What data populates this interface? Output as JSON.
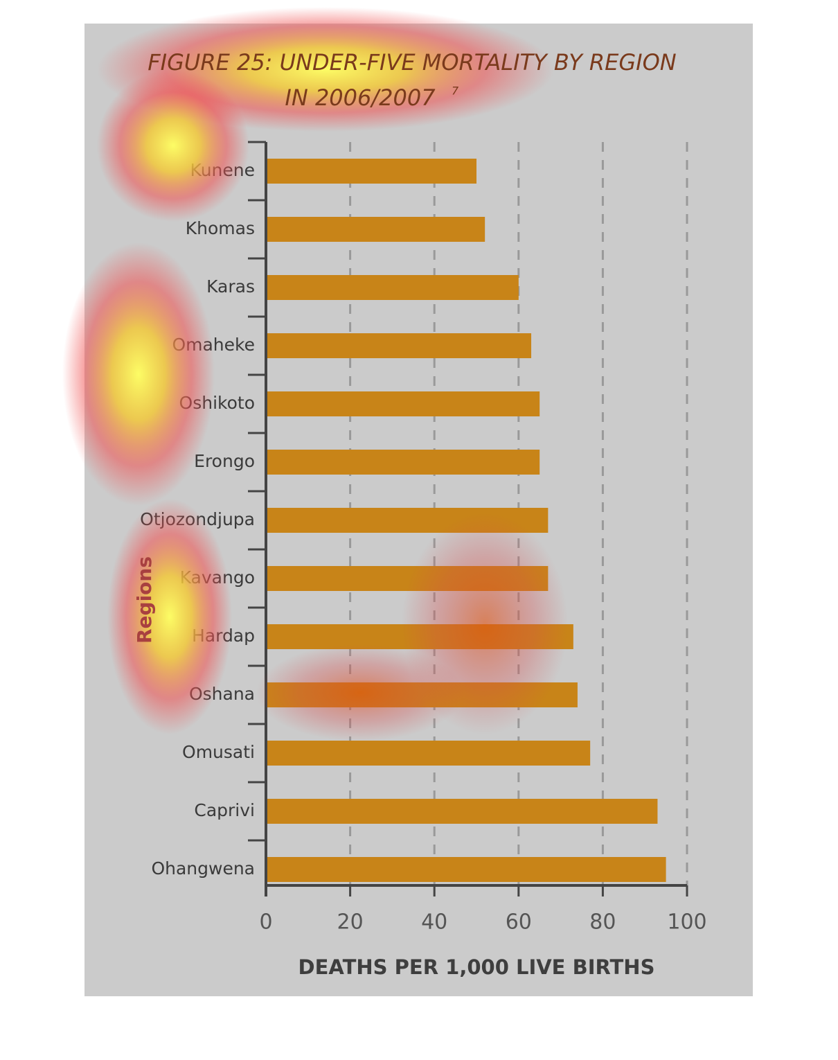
{
  "chart_data": {
    "type": "hbar",
    "title_lines": [
      "FIGURE 25: UNDER-FIVE MORTALITY BY REGION",
      "IN 2006/2007"
    ],
    "title_footnote": "7",
    "x_label": "DEATHS PER 1,000 LIVE BIRTHS",
    "y_label": "Regions",
    "categories": [
      "Kunene",
      "Khomas",
      "Karas",
      "Omaheke",
      "Oshikoto",
      "Erongo",
      "Otjozondjupa",
      "Kavango",
      "Hardap",
      "Oshana",
      "Omusati",
      "Caprivi",
      "Ohangwena"
    ],
    "values": [
      50,
      52,
      60,
      63,
      65,
      65,
      67,
      67,
      73,
      74,
      77,
      93,
      95
    ],
    "color": "#c88418",
    "xlim": [
      0,
      100
    ],
    "xticks": [
      0,
      20,
      40,
      60,
      80,
      100
    ],
    "grid": true
  }
}
